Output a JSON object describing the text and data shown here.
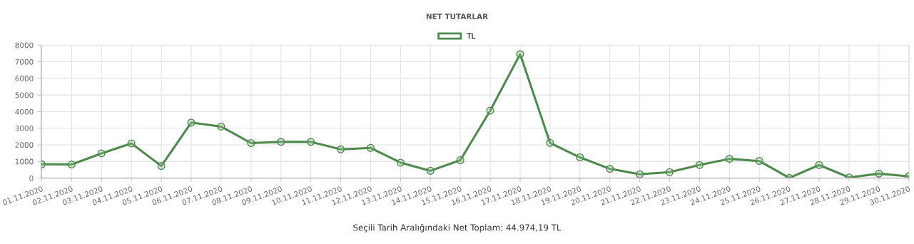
{
  "chart_data": {
    "type": "line",
    "title": "NET TUTARLAR",
    "categories": [
      "01.11.2020",
      "02.11.2020",
      "03.11.2020",
      "04.11.2020",
      "05.11.2020",
      "06.11.2020",
      "07.11.2020",
      "08.11.2020",
      "09.11.2020",
      "10.11.2020",
      "11.11.2020",
      "12.11.2020",
      "13.11.2020",
      "14.11.2020",
      "15.11.2020",
      "16.11.2020",
      "17.11.2020",
      "18.11.2020",
      "19.11.2020",
      "20.11.2020",
      "21.11.2020",
      "22.11.2020",
      "23.11.2020",
      "24.11.2020",
      "25.11.2020",
      "26.11.2020",
      "27.11.2020",
      "28.11.2020",
      "29.11.2020",
      "30.11.2020"
    ],
    "series": [
      {
        "name": "TL",
        "color": "#4e8a4e",
        "values": [
          830,
          820,
          1490,
          2090,
          730,
          3340,
          3100,
          2110,
          2180,
          2180,
          1730,
          1820,
          930,
          440,
          1080,
          4060,
          7460,
          2120,
          1250,
          560,
          230,
          360,
          790,
          1160,
          1030,
          10,
          790,
          40,
          270,
          110
        ]
      }
    ],
    "ylim": [
      0,
      8000
    ],
    "yticks": [
      0,
      1000,
      2000,
      3000,
      4000,
      5000,
      6000,
      7000,
      8000
    ],
    "grid": true,
    "legend": "top",
    "marker": "circle",
    "line_style": "solid",
    "annotations": [
      "Seçili Tarih Aralığındaki Net Toplam: 44.974,19 TL"
    ]
  }
}
